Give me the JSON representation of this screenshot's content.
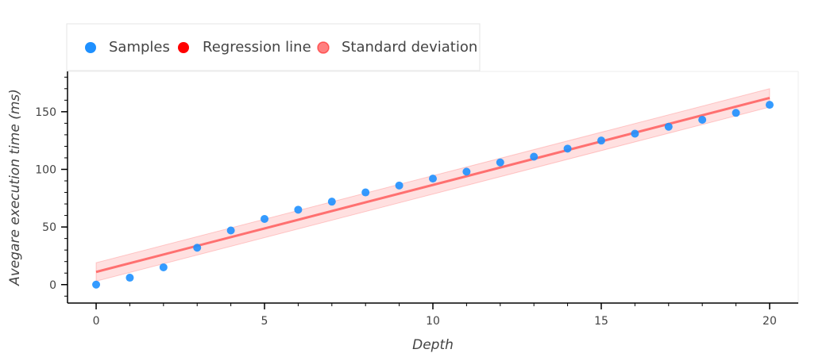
{
  "chart_data": {
    "type": "scatter",
    "xlabel": "Depth",
    "ylabel": "Avegare execution time (ms)",
    "xlim": [
      -0.85,
      20.85
    ],
    "ylim": [
      -16,
      185
    ],
    "x_ticks": [
      0,
      5,
      10,
      15,
      20
    ],
    "y_ticks": [
      0,
      50,
      100,
      150
    ],
    "x_minor_step": 1,
    "y_minor_step": 10,
    "grid": false,
    "legend_position": "top-left, outside plot",
    "series": [
      {
        "name": "Samples",
        "kind": "scatter",
        "color": "#1e90ff",
        "x": [
          0,
          1,
          2,
          3,
          4,
          5,
          6,
          7,
          8,
          9,
          10,
          11,
          12,
          13,
          14,
          15,
          16,
          17,
          18,
          19,
          20
        ],
        "y": [
          0,
          6,
          15,
          32,
          47,
          57,
          65,
          72,
          80,
          86,
          92,
          98,
          106,
          111,
          118,
          125,
          131,
          137,
          143,
          149,
          156
        ]
      },
      {
        "name": "Regression line",
        "kind": "line",
        "color": "#ff0000",
        "x": [
          0,
          20
        ],
        "y": [
          11,
          162
        ]
      },
      {
        "name": "Standard deviation",
        "kind": "band",
        "color": "#ff0000",
        "x": [
          0,
          20
        ],
        "upper": [
          19,
          170
        ],
        "lower": [
          3,
          154
        ]
      }
    ]
  }
}
